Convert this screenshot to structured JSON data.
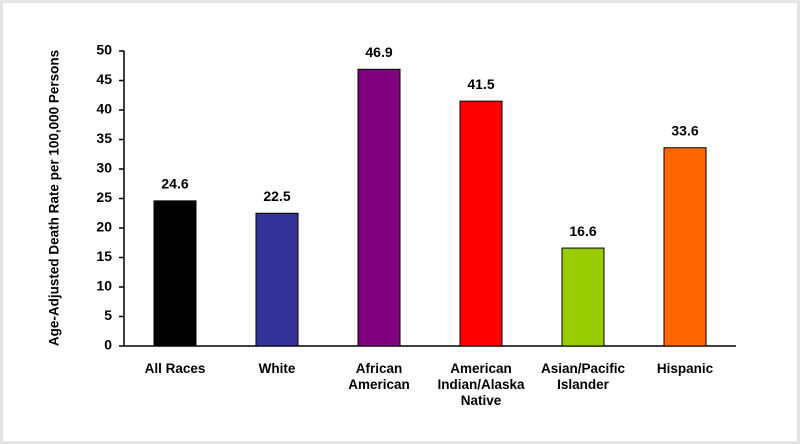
{
  "chart_data": {
    "type": "bar",
    "y_axis_label": "Age-Adjusted Death Rate per 100,000 Persons",
    "categories": [
      "All Races",
      "White",
      "African American",
      "American Indian/Alaska Native",
      "Asian/Pacific Islander",
      "Hispanic"
    ],
    "values": [
      24.6,
      22.5,
      46.9,
      41.5,
      16.6,
      33.6
    ],
    "colors": [
      "#000000",
      "#333399",
      "#800080",
      "#ff0000",
      "#99cc00",
      "#ff6600"
    ],
    "ylim": [
      0,
      50
    ],
    "yticks": [
      0,
      5,
      10,
      15,
      20,
      25,
      30,
      35,
      40,
      45,
      50
    ],
    "grid": false
  }
}
